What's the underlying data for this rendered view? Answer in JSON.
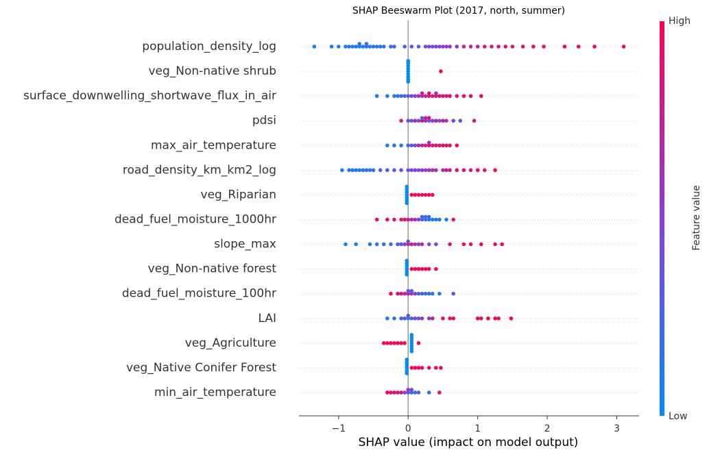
{
  "chart_data": {
    "type": "beeswarm",
    "title": "SHAP Beeswarm Plot (2017, north, summer)",
    "xlabel": "SHAP value (impact on model output)",
    "xlim": [
      -1.57,
      3.32
    ],
    "xticks": [
      {
        "value": -1,
        "label": "−1"
      },
      0,
      1,
      2,
      3
    ],
    "colormap": [
      "#008bfb",
      "#8a3cdc",
      "#ff0052"
    ],
    "colorbar": {
      "label": "Feature value",
      "high": "High",
      "low": "Low"
    },
    "features": [
      {
        "name": "population_density_log",
        "shap": [
          -1.35,
          -1.1,
          -1.0,
          -0.9,
          -0.85,
          -0.8,
          -0.75,
          -0.7,
          -0.7,
          -0.65,
          -0.6,
          -0.6,
          -0.55,
          -0.5,
          -0.45,
          -0.4,
          -0.35,
          -0.25,
          -0.2,
          -0.05,
          0.05,
          0.15,
          0.25,
          0.3,
          0.35,
          0.4,
          0.45,
          0.5,
          0.55,
          0.6,
          0.7,
          0.8,
          0.9,
          1.0,
          1.1,
          1.2,
          1.3,
          1.4,
          1.5,
          1.65,
          1.8,
          1.95,
          2.25,
          2.45,
          2.68,
          3.1
        ],
        "feature_value": [
          0.05,
          0.08,
          0.1,
          0.1,
          0.12,
          0.1,
          0.12,
          0.1,
          0.15,
          0.12,
          0.1,
          0.15,
          0.12,
          0.15,
          0.1,
          0.15,
          0.2,
          0.2,
          0.25,
          0.3,
          0.35,
          0.3,
          0.4,
          0.45,
          0.4,
          0.5,
          0.45,
          0.5,
          0.6,
          0.55,
          0.6,
          0.7,
          0.75,
          0.7,
          0.8,
          0.85,
          0.8,
          0.9,
          0.85,
          0.9,
          0.95,
          0.9,
          1,
          1,
          1,
          1
        ]
      },
      {
        "name": "veg_Non-native shrub",
        "shap": [
          0,
          0,
          0,
          0,
          0,
          0,
          0,
          0,
          0,
          0,
          0,
          0.47
        ],
        "feature_value": [
          0,
          0,
          0,
          0,
          0,
          0,
          0,
          0,
          0,
          0,
          0,
          1
        ]
      },
      {
        "name": "surface_downwelling_shortwave_flux_in_air",
        "shap": [
          -0.45,
          -0.3,
          -0.2,
          -0.15,
          -0.1,
          -0.05,
          0,
          0.05,
          0.1,
          0.15,
          0.2,
          0.2,
          0.25,
          0.3,
          0.3,
          0.35,
          0.4,
          0.4,
          0.45,
          0.5,
          0.55,
          0.6,
          0.7,
          0.8,
          0.9,
          1.05
        ],
        "feature_value": [
          0.05,
          0.1,
          0.1,
          0.15,
          0.2,
          0.25,
          0.3,
          0.4,
          0.5,
          0.6,
          0.7,
          0.8,
          0.75,
          0.85,
          0.9,
          0.8,
          0.9,
          0.7,
          0.85,
          0.9,
          0.8,
          0.95,
          0.9,
          1,
          0.95,
          1
        ]
      },
      {
        "name": "pdsi",
        "shap": [
          -0.1,
          0,
          0.05,
          0.1,
          0.15,
          0.2,
          0.2,
          0.25,
          0.25,
          0.3,
          0.3,
          0.35,
          0.4,
          0.45,
          0.5,
          0.55,
          0.65,
          0.75,
          0.95
        ],
        "feature_value": [
          0.8,
          0.5,
          0.3,
          0.7,
          0.4,
          0.9,
          0.2,
          0.6,
          0.8,
          0.3,
          0.9,
          0.5,
          0.7,
          0.4,
          0.8,
          0.6,
          0.5,
          0.3,
          0.8
        ]
      },
      {
        "name": "max_air_temperature",
        "shap": [
          -0.3,
          -0.2,
          -0.1,
          0,
          0.05,
          0.1,
          0.15,
          0.2,
          0.25,
          0.3,
          0.3,
          0.35,
          0.4,
          0.45,
          0.5,
          0.55,
          0.6,
          0.7
        ],
        "feature_value": [
          0.05,
          0.1,
          0.15,
          0.2,
          0.3,
          0.4,
          0.6,
          0.7,
          0.8,
          0.9,
          0.6,
          0.85,
          0.9,
          0.8,
          0.95,
          0.9,
          0.85,
          1
        ]
      },
      {
        "name": "road_density_km_km2_log",
        "shap": [
          -0.95,
          -0.85,
          -0.8,
          -0.75,
          -0.7,
          -0.65,
          -0.6,
          -0.55,
          -0.5,
          -0.4,
          -0.3,
          -0.2,
          -0.1,
          0,
          0.05,
          0.1,
          0.15,
          0.2,
          0.25,
          0.3,
          0.35,
          0.4,
          0.5,
          0.55,
          0.6,
          0.7,
          0.8,
          0.9,
          1.0,
          1.1,
          1.25
        ],
        "feature_value": [
          0.05,
          0.1,
          0.08,
          0.1,
          0.12,
          0.1,
          0.15,
          0.12,
          0.2,
          0.25,
          0.3,
          0.3,
          0.35,
          0.4,
          0.45,
          0.5,
          0.4,
          0.6,
          0.5,
          0.55,
          0.7,
          0.6,
          0.65,
          0.8,
          0.7,
          0.85,
          0.9,
          0.8,
          0.95,
          0.9,
          1
        ]
      },
      {
        "name": "veg_Riparian",
        "shap": [
          -0.02,
          -0.02,
          -0.02,
          -0.02,
          -0.02,
          -0.02,
          -0.02,
          0.05,
          0.1,
          0.15,
          0.2,
          0.25,
          0.3,
          0.35
        ],
        "feature_value": [
          0,
          0,
          0,
          0,
          0,
          0,
          0,
          1,
          1,
          1,
          1,
          1,
          1,
          1
        ]
      },
      {
        "name": "dead_fuel_moisture_1000hr",
        "shap": [
          -0.45,
          -0.3,
          -0.2,
          -0.1,
          -0.05,
          0,
          0.05,
          0.1,
          0.15,
          0.2,
          0.2,
          0.25,
          0.25,
          0.3,
          0.3,
          0.35,
          0.4,
          0.45,
          0.55,
          0.65
        ],
        "feature_value": [
          1,
          0.95,
          0.9,
          0.85,
          0.9,
          0.8,
          0.7,
          0.6,
          0.5,
          0.3,
          0.2,
          0.15,
          0.25,
          0.1,
          0.2,
          0.15,
          0.1,
          0.1,
          0.05,
          0.9
        ]
      },
      {
        "name": "slope_max",
        "shap": [
          -0.9,
          -0.75,
          -0.55,
          -0.45,
          -0.35,
          -0.25,
          -0.15,
          -0.1,
          -0.05,
          0,
          0,
          0.05,
          0.1,
          0.15,
          0.2,
          0.3,
          0.4,
          0.6,
          0.8,
          0.9,
          1.05,
          1.25,
          1.35
        ],
        "feature_value": [
          0.05,
          0.08,
          0.1,
          0.12,
          0.15,
          0.2,
          0.25,
          0.3,
          0.5,
          0.7,
          0.4,
          0.8,
          0.6,
          0.5,
          0.7,
          0.5,
          0.4,
          0.9,
          0.95,
          0.9,
          1,
          0.95,
          1
        ]
      },
      {
        "name": "veg_Non-native forest",
        "shap": [
          -0.02,
          -0.02,
          -0.02,
          -0.02,
          -0.02,
          -0.02,
          0.05,
          0.1,
          0.15,
          0.2,
          0.25,
          0.3,
          0.4
        ],
        "feature_value": [
          0,
          0,
          0,
          0,
          0,
          0,
          1,
          1,
          1,
          1,
          1,
          1,
          1
        ]
      },
      {
        "name": "dead_fuel_moisture_100hr",
        "shap": [
          -0.25,
          -0.15,
          -0.1,
          -0.05,
          0,
          0,
          0.05,
          0.05,
          0.1,
          0.15,
          0.2,
          0.25,
          0.3,
          0.35,
          0.45,
          0.65
        ],
        "feature_value": [
          1,
          0.9,
          0.85,
          0.7,
          0.8,
          0.4,
          0.6,
          0.3,
          0.5,
          0.2,
          0.3,
          0.15,
          0.2,
          0.1,
          0.1,
          0.4
        ]
      },
      {
        "name": "LAI",
        "shap": [
          -0.3,
          -0.2,
          -0.1,
          -0.05,
          0,
          0,
          0.05,
          0.1,
          0.15,
          0.2,
          0.3,
          0.35,
          0.5,
          0.6,
          0.65,
          1.0,
          1.05,
          1.15,
          1.25,
          1.3,
          1.48
        ],
        "feature_value": [
          0.1,
          0.15,
          0.2,
          0.3,
          0.1,
          0.4,
          0.2,
          0.5,
          0.3,
          0.6,
          0.5,
          0.8,
          0.95,
          0.9,
          1,
          1,
          0.95,
          1,
          1,
          0.95,
          1
        ]
      },
      {
        "name": "veg_Agriculture",
        "shap": [
          -0.35,
          -0.3,
          -0.25,
          -0.2,
          -0.15,
          -0.1,
          -0.05,
          0.05,
          0.05,
          0.05,
          0.05,
          0.05,
          0.05,
          0.05,
          0.15
        ],
        "feature_value": [
          1,
          1,
          1,
          1,
          1,
          1,
          1,
          0,
          0,
          0,
          0,
          0,
          0,
          0,
          1
        ]
      },
      {
        "name": "veg_Native Conifer Forest",
        "shap": [
          -0.02,
          -0.02,
          -0.02,
          -0.02,
          -0.02,
          -0.02,
          0.05,
          0.1,
          0.15,
          0.2,
          0.3,
          0.4,
          0.47
        ],
        "feature_value": [
          0,
          0,
          0,
          0,
          0,
          0,
          1,
          1,
          1,
          1,
          1,
          1,
          1
        ]
      },
      {
        "name": "min_air_temperature",
        "shap": [
          -0.3,
          -0.25,
          -0.2,
          -0.15,
          -0.1,
          -0.05,
          0,
          0,
          0.05,
          0.05,
          0.1,
          0.15,
          0.3,
          0.45
        ],
        "feature_value": [
          1,
          0.95,
          0.9,
          0.85,
          0.8,
          0.5,
          0.3,
          0.6,
          0.2,
          0.5,
          0.1,
          0.3,
          0.2,
          0.9
        ]
      }
    ]
  }
}
